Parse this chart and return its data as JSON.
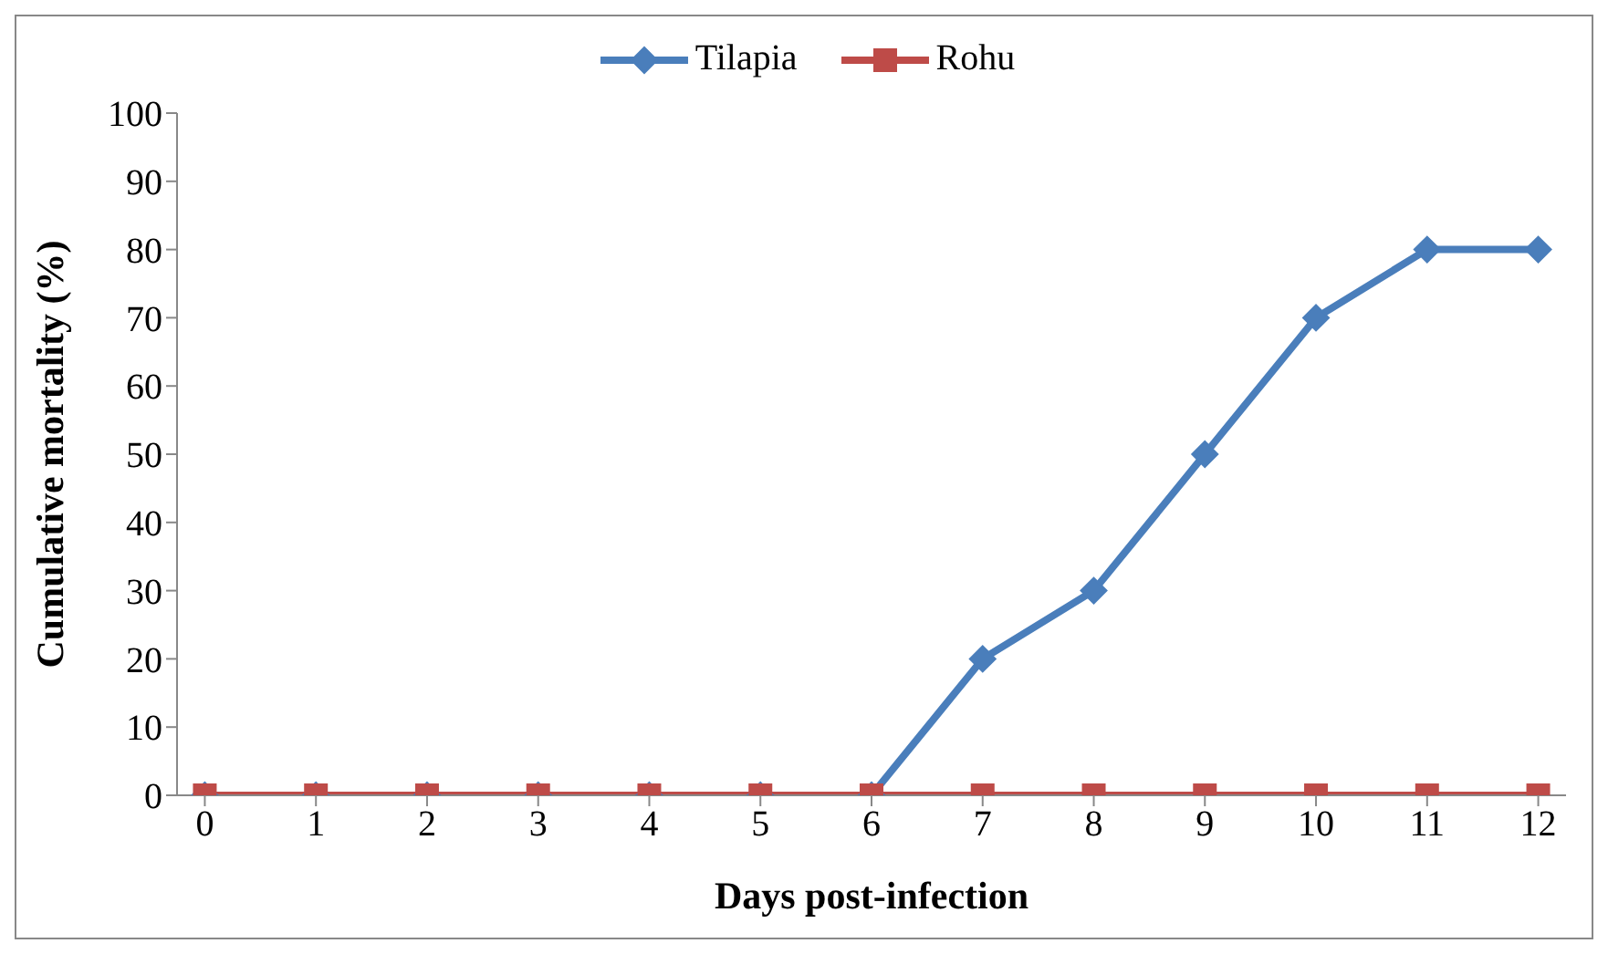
{
  "chart_data": {
    "type": "line",
    "xlabel": "Days post-infection",
    "ylabel": "Cumulative mortality (%)",
    "x": [
      0,
      1,
      2,
      3,
      4,
      5,
      6,
      7,
      8,
      9,
      10,
      11,
      12
    ],
    "xlim": [
      -0.25,
      12.25
    ],
    "xticks": [
      0,
      1,
      2,
      3,
      4,
      5,
      6,
      7,
      8,
      9,
      10,
      11,
      12
    ],
    "series": [
      {
        "name": "Tilapia",
        "color": "#4a7ebb",
        "marker": "diamond",
        "values": [
          0,
          0,
          0,
          0,
          0,
          0,
          0,
          20,
          30,
          50,
          70,
          80,
          80
        ]
      },
      {
        "name": "Rohu",
        "color": "#be4b48",
        "marker": "square",
        "values": [
          0,
          0,
          0,
          0,
          0,
          0,
          0,
          0,
          0,
          0,
          0,
          0,
          0
        ]
      }
    ],
    "ylim": [
      0,
      100
    ],
    "yticks": [
      0,
      10,
      20,
      30,
      40,
      50,
      60,
      70,
      80,
      90,
      100
    ],
    "grid": false,
    "legend": "top",
    "line_style": "solid"
  }
}
